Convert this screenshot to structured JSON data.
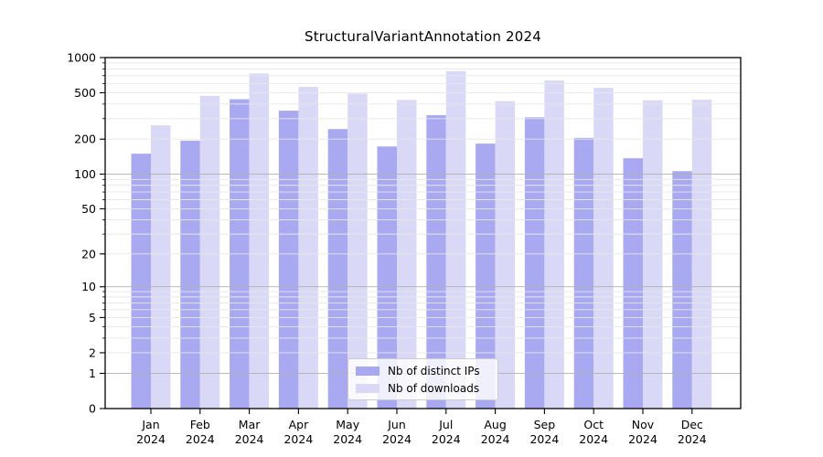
{
  "chart_data": {
    "type": "bar",
    "title": "StructuralVariantAnnotation 2024",
    "categories": [
      "Jan",
      "Feb",
      "Mar",
      "Apr",
      "May",
      "Jun",
      "Jul",
      "Aug",
      "Sep",
      "Oct",
      "Nov",
      "Dec"
    ],
    "x_year_label": "2024",
    "series": [
      {
        "name": "Nb of distinct IPs",
        "color": "#a9a9f1",
        "values": [
          150,
          194,
          440,
          351,
          244,
          173,
          321,
          183,
          308,
          205,
          137,
          106
        ]
      },
      {
        "name": "Nb of downloads",
        "color": "#d9d9f7",
        "values": [
          263,
          470,
          731,
          561,
          492,
          434,
          765,
          423,
          637,
          551,
          431,
          436
        ]
      }
    ],
    "y_ticks": [
      1000,
      500,
      200,
      100,
      50,
      20,
      10,
      5,
      2,
      1,
      0
    ],
    "ylim": [
      0,
      1000
    ],
    "y_scale": "log1p",
    "grid": "horizontal major+minor, drawn above bars",
    "legend_position": "inside bottom-center",
    "colors": {
      "major_gridline": "#b0b0b0",
      "minor_gridline": "#e7e7e7",
      "spine": "#000000",
      "text": "#000000"
    }
  }
}
